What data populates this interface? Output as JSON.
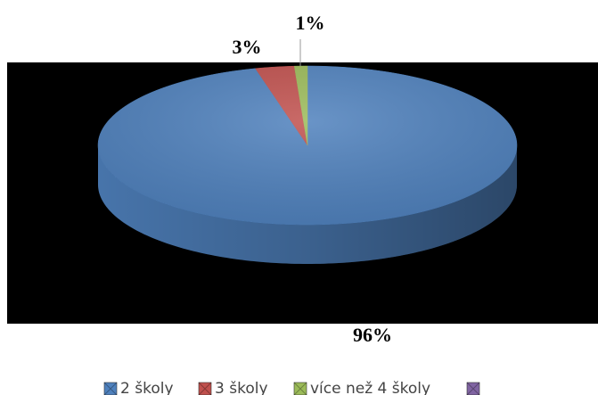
{
  "chart_data": {
    "type": "pie",
    "categories": [
      "2 školy",
      "3 školy",
      "více než 4 školy",
      null
    ],
    "values": [
      96,
      3,
      1,
      0
    ],
    "value_labels": [
      "96%",
      "3%",
      "1%",
      null
    ],
    "colors": [
      "#4f81bd",
      "#c0504d",
      "#9bbb59",
      "#8064a2"
    ],
    "legend": "bottom"
  }
}
